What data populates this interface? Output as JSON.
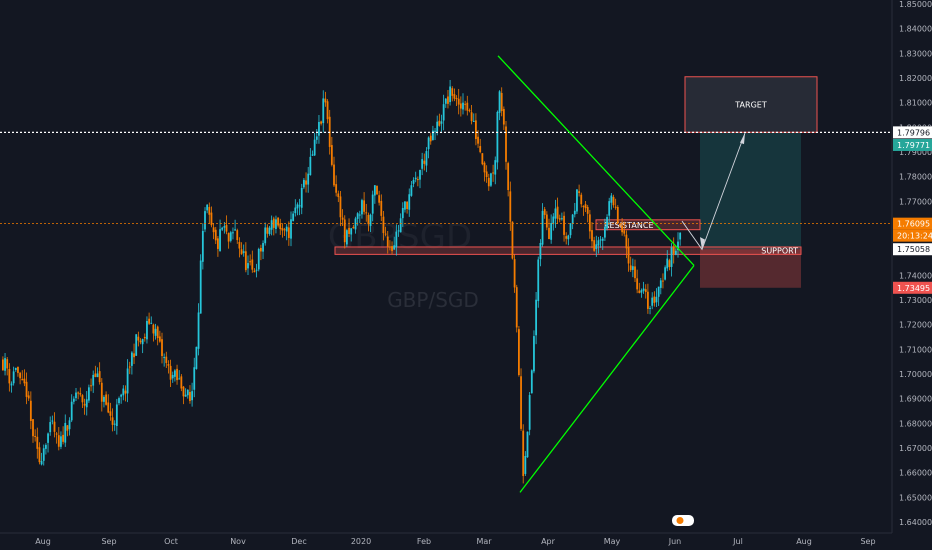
{
  "chart_data": {
    "type": "candlestick",
    "symbol_watermark": "GBPSGD",
    "pair_watermark": "GBP/SGD",
    "y_axis": {
      "range": [
        1.638,
        1.853
      ],
      "ticks": [
        "1.85000",
        "1.84000",
        "1.83000",
        "1.82000",
        "1.81000",
        "1.80000",
        "1.79000",
        "1.78000",
        "1.77000",
        "1.76000",
        "1.75000",
        "1.74000",
        "1.73000",
        "1.72000",
        "1.71000",
        "1.70000",
        "1.69000",
        "1.68000",
        "1.67000",
        "1.66000",
        "1.65000",
        "1.64000"
      ]
    },
    "x_axis": {
      "ticks": [
        "Aug",
        "Sep",
        "Oct",
        "Nov",
        "Dec",
        "2020",
        "Feb",
        "Mar",
        "Apr",
        "May",
        "Jun",
        "Jul",
        "Aug",
        "Sep"
      ],
      "range_label": "Aug 2019 – Sep 2020 (daily)"
    },
    "price_path": [
      {
        "t": 0,
        "p": 1.706
      },
      {
        "t": 6,
        "p": 1.703
      },
      {
        "t": 10,
        "p": 1.696
      },
      {
        "t": 15,
        "p": 1.704
      },
      {
        "t": 20,
        "p": 1.694
      },
      {
        "t": 25,
        "p": 1.695
      },
      {
        "t": 30,
        "p": 1.68
      },
      {
        "t": 38,
        "p": 1.664
      },
      {
        "t": 45,
        "p": 1.674
      },
      {
        "t": 52,
        "p": 1.679
      },
      {
        "t": 58,
        "p": 1.669
      },
      {
        "t": 64,
        "p": 1.678
      },
      {
        "t": 70,
        "p": 1.684
      },
      {
        "t": 76,
        "p": 1.694
      },
      {
        "t": 82,
        "p": 1.686
      },
      {
        "t": 88,
        "p": 1.693
      },
      {
        "t": 94,
        "p": 1.703
      },
      {
        "t": 100,
        "p": 1.692
      },
      {
        "t": 106,
        "p": 1.686
      },
      {
        "t": 112,
        "p": 1.68
      },
      {
        "t": 118,
        "p": 1.688
      },
      {
        "t": 124,
        "p": 1.693
      },
      {
        "t": 130,
        "p": 1.706
      },
      {
        "t": 136,
        "p": 1.714
      },
      {
        "t": 142,
        "p": 1.712
      },
      {
        "t": 148,
        "p": 1.722
      },
      {
        "t": 154,
        "p": 1.718
      },
      {
        "t": 160,
        "p": 1.709
      },
      {
        "t": 166,
        "p": 1.703
      },
      {
        "t": 172,
        "p": 1.699
      },
      {
        "t": 178,
        "p": 1.697
      },
      {
        "t": 184,
        "p": 1.693
      },
      {
        "t": 190,
        "p": 1.688
      },
      {
        "t": 196,
        "p": 1.716
      },
      {
        "t": 200,
        "p": 1.746
      },
      {
        "t": 205,
        "p": 1.768
      },
      {
        "t": 210,
        "p": 1.759
      },
      {
        "t": 216,
        "p": 1.751
      },
      {
        "t": 222,
        "p": 1.76
      },
      {
        "t": 228,
        "p": 1.753
      },
      {
        "t": 234,
        "p": 1.758
      },
      {
        "t": 240,
        "p": 1.75
      },
      {
        "t": 246,
        "p": 1.744
      },
      {
        "t": 252,
        "p": 1.741
      },
      {
        "t": 258,
        "p": 1.748
      },
      {
        "t": 264,
        "p": 1.756
      },
      {
        "t": 270,
        "p": 1.76
      },
      {
        "t": 276,
        "p": 1.763
      },
      {
        "t": 282,
        "p": 1.755
      },
      {
        "t": 288,
        "p": 1.758
      },
      {
        "t": 294,
        "p": 1.766
      },
      {
        "t": 300,
        "p": 1.771
      },
      {
        "t": 305,
        "p": 1.779
      },
      {
        "t": 310,
        "p": 1.786
      },
      {
        "t": 315,
        "p": 1.794
      },
      {
        "t": 320,
        "p": 1.803
      },
      {
        "t": 324,
        "p": 1.812
      },
      {
        "t": 328,
        "p": 1.797
      },
      {
        "t": 332,
        "p": 1.781
      },
      {
        "t": 336,
        "p": 1.772
      },
      {
        "t": 340,
        "p": 1.766
      },
      {
        "t": 344,
        "p": 1.754
      },
      {
        "t": 350,
        "p": 1.757
      },
      {
        "t": 356,
        "p": 1.763
      },
      {
        "t": 362,
        "p": 1.77
      },
      {
        "t": 368,
        "p": 1.76
      },
      {
        "t": 374,
        "p": 1.775
      },
      {
        "t": 380,
        "p": 1.765
      },
      {
        "t": 386,
        "p": 1.754
      },
      {
        "t": 392,
        "p": 1.752
      },
      {
        "t": 398,
        "p": 1.76
      },
      {
        "t": 404,
        "p": 1.768
      },
      {
        "t": 410,
        "p": 1.774
      },
      {
        "t": 416,
        "p": 1.779
      },
      {
        "t": 422,
        "p": 1.786
      },
      {
        "t": 428,
        "p": 1.793
      },
      {
        "t": 434,
        "p": 1.798
      },
      {
        "t": 440,
        "p": 1.804
      },
      {
        "t": 446,
        "p": 1.811
      },
      {
        "t": 452,
        "p": 1.815
      },
      {
        "t": 458,
        "p": 1.806
      },
      {
        "t": 464,
        "p": 1.812
      },
      {
        "t": 470,
        "p": 1.804
      },
      {
        "t": 476,
        "p": 1.796
      },
      {
        "t": 482,
        "p": 1.787
      },
      {
        "t": 488,
        "p": 1.778
      },
      {
        "t": 494,
        "p": 1.786
      },
      {
        "t": 498,
        "p": 1.818
      },
      {
        "t": 502,
        "p": 1.805
      },
      {
        "t": 506,
        "p": 1.784
      },
      {
        "t": 510,
        "p": 1.76
      },
      {
        "t": 514,
        "p": 1.73
      },
      {
        "t": 518,
        "p": 1.7
      },
      {
        "t": 522,
        "p": 1.66
      },
      {
        "t": 526,
        "p": 1.676
      },
      {
        "t": 530,
        "p": 1.695
      },
      {
        "t": 534,
        "p": 1.722
      },
      {
        "t": 538,
        "p": 1.747
      },
      {
        "t": 542,
        "p": 1.766
      },
      {
        "t": 548,
        "p": 1.758
      },
      {
        "t": 554,
        "p": 1.77
      },
      {
        "t": 560,
        "p": 1.762
      },
      {
        "t": 566,
        "p": 1.754
      },
      {
        "t": 572,
        "p": 1.765
      },
      {
        "t": 578,
        "p": 1.775
      },
      {
        "t": 584,
        "p": 1.768
      },
      {
        "t": 590,
        "p": 1.756
      },
      {
        "t": 596,
        "p": 1.749
      },
      {
        "t": 602,
        "p": 1.756
      },
      {
        "t": 608,
        "p": 1.771
      },
      {
        "t": 614,
        "p": 1.766
      },
      {
        "t": 620,
        "p": 1.758
      },
      {
        "t": 626,
        "p": 1.75
      },
      {
        "t": 632,
        "p": 1.742
      },
      {
        "t": 638,
        "p": 1.735
      },
      {
        "t": 644,
        "p": 1.731
      },
      {
        "t": 650,
        "p": 1.727
      },
      {
        "t": 656,
        "p": 1.734
      },
      {
        "t": 662,
        "p": 1.74
      },
      {
        "t": 668,
        "p": 1.746
      },
      {
        "t": 674,
        "p": 1.751
      },
      {
        "t": 678,
        "p": 1.758
      },
      {
        "t": 681,
        "p": 1.7606
      }
    ],
    "horizontal_lines": [
      {
        "name": "target_level",
        "price": 1.79796,
        "style": "dotted",
        "color": "#ffffff"
      },
      {
        "name": "current_price",
        "price": 1.76095,
        "style": "dotted",
        "color": "#f57c00"
      }
    ],
    "zones": [
      {
        "name": "resistance",
        "label": "RESISTANCE",
        "p_top": 1.7625,
        "p_bottom": 1.7585,
        "color": "#ef5350"
      },
      {
        "name": "support",
        "label": "SUPPORT",
        "p_top": 1.7515,
        "p_bottom": 1.7485,
        "color": "#ef5350"
      },
      {
        "name": "target",
        "label": "TARGET",
        "p_top": 1.8205,
        "p_bottom": 1.798,
        "color": "#ef5350"
      }
    ],
    "position": {
      "entry": 1.75058,
      "take_profit": 1.79796,
      "stop_loss": 1.73495,
      "profit_color": "#26a69a",
      "loss_color": "#ef5350"
    },
    "triangle": {
      "color": "#00ff00",
      "upper_start": {
        "date": "Mar",
        "price": 1.829
      },
      "lower_start": {
        "date": "Mar",
        "price": 1.652
      },
      "apex_price": 1.744
    },
    "price_tags": [
      {
        "label": "1.79796",
        "price": 1.79796,
        "bg": "#ffffff",
        "fg": "#131722"
      },
      {
        "label": "1.79771",
        "price": 1.79771,
        "bg": "#26a69a",
        "fg": "#ffffff",
        "offset": 12
      },
      {
        "label": "1.76095",
        "price": 1.76095,
        "bg": "#f57c00",
        "fg": "#ffffff"
      },
      {
        "label": "20:13:24",
        "price": 1.76095,
        "bg": "#f57c00",
        "fg": "#ffffff",
        "offset": 12
      },
      {
        "label": "1.75058",
        "price": 1.75058,
        "bg": "#ffffff",
        "fg": "#131722"
      },
      {
        "label": "1.73495",
        "price": 1.73495,
        "bg": "#ef5350",
        "fg": "#ffffff"
      }
    ],
    "colors": {
      "background": "#131722",
      "up_candle": "#26c6da",
      "down_candle": "#f57c00",
      "axis_text": "#b2b5be"
    }
  }
}
